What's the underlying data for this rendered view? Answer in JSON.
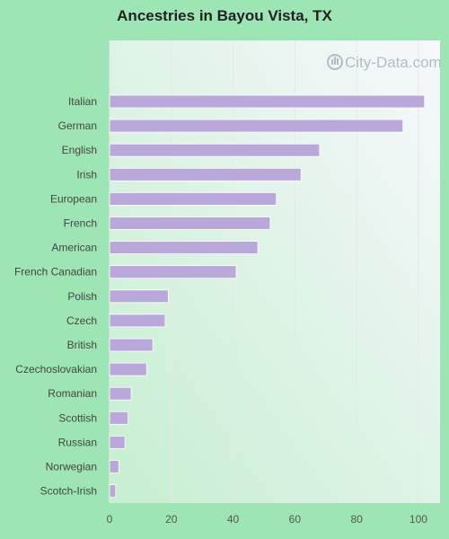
{
  "colors": {
    "page_background": "#9de5b5",
    "bar": "#bba8da",
    "grid": "#e6e8e6",
    "plot_gradient_from": "#c6efd0",
    "plot_gradient_to": "#f7f8fd"
  },
  "watermark": {
    "text": "City-Data.com",
    "icon": "city-data-logo-icon"
  },
  "chart_data": {
    "type": "bar",
    "orientation": "horizontal",
    "title": "Ancestries in Bayou Vista, TX",
    "xlabel": "",
    "ylabel": "",
    "categories": [
      "Italian",
      "German",
      "English",
      "Irish",
      "European",
      "French",
      "American",
      "French Canadian",
      "Polish",
      "Czech",
      "British",
      "Czechoslovakian",
      "Romanian",
      "Scottish",
      "Russian",
      "Norwegian",
      "Scotch-Irish"
    ],
    "values": [
      102,
      95,
      68,
      62,
      54,
      52,
      48,
      41,
      19,
      18,
      14,
      12,
      7,
      6,
      5,
      3,
      2
    ],
    "xlim": [
      0,
      107
    ],
    "xticks": [
      0,
      20,
      40,
      60,
      80,
      100
    ],
    "grid": true,
    "legend": "none"
  }
}
